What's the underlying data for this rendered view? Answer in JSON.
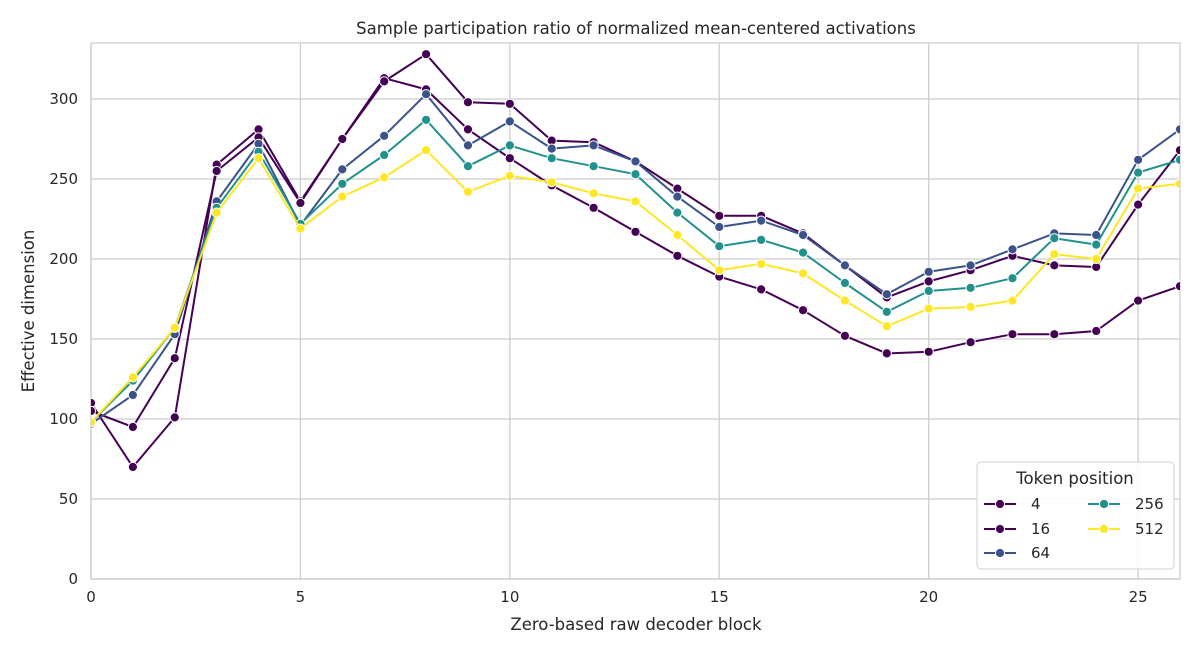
{
  "chart_data": {
    "type": "line",
    "title": "Sample participation ratio of normalized mean-centered activations",
    "xlabel": "Zero-based raw decoder block",
    "ylabel": "Effective dimension",
    "xlim": [
      0,
      26
    ],
    "ylim": [
      0,
      335
    ],
    "xticks": [
      "0",
      "5",
      "10",
      "15",
      "20",
      "25"
    ],
    "yticks": [
      "0",
      "50",
      "100",
      "150",
      "200",
      "250",
      "300"
    ],
    "grid": true,
    "legend": {
      "title": "Token position",
      "placement": "bottom-right",
      "columns": 2
    },
    "x": [
      0,
      1,
      2,
      3,
      4,
      5,
      6,
      7,
      8,
      9,
      10,
      11,
      12,
      13,
      14,
      15,
      16,
      17,
      18,
      19,
      20,
      21,
      22,
      23,
      24,
      25,
      26
    ],
    "series": [
      {
        "name": "4",
        "color": "#440154",
        "values": [
          110,
          70,
          101,
          259,
          281,
          236,
          275,
          313,
          306,
          281,
          263,
          246,
          232,
          217,
          202,
          189,
          181,
          168,
          152,
          141,
          142,
          148,
          153,
          153,
          155,
          174,
          183
        ]
      },
      {
        "name": "16",
        "color": "#440154",
        "values": [
          105,
          95,
          138,
          255,
          276,
          235,
          275,
          311,
          328,
          298,
          297,
          274,
          273,
          261,
          244,
          227,
          227,
          216,
          196,
          176,
          186,
          193,
          202,
          196,
          195,
          234,
          268
        ]
      },
      {
        "name": "64",
        "color": "#3b528b",
        "values": [
          97,
          115,
          153,
          236,
          272,
          221,
          256,
          277,
          303,
          271,
          286,
          269,
          271,
          261,
          239,
          220,
          224,
          215,
          196,
          178,
          192,
          196,
          206,
          216,
          215,
          262,
          281
        ]
      },
      {
        "name": "256",
        "color": "#21918c",
        "values": [
          98,
          124,
          157,
          232,
          267,
          222,
          247,
          265,
          287,
          258,
          271,
          263,
          258,
          253,
          229,
          208,
          212,
          204,
          185,
          167,
          180,
          182,
          188,
          213,
          209,
          254,
          262
        ]
      },
      {
        "name": "512",
        "color": "#fde725",
        "values": [
          98,
          126,
          157,
          229,
          263,
          219,
          239,
          251,
          268,
          242,
          252,
          248,
          241,
          236,
          215,
          193,
          197,
          191,
          174,
          158,
          169,
          170,
          174,
          203,
          200,
          244,
          247
        ]
      }
    ]
  }
}
